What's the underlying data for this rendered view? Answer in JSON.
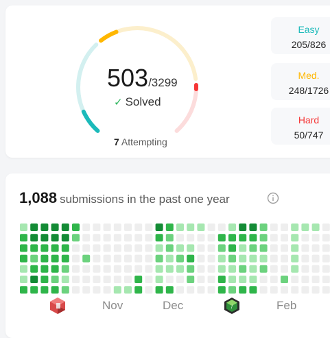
{
  "progress": {
    "solved": "503",
    "total": "/3299",
    "solved_label": "Solved",
    "attempting_count": "7",
    "attempting_label": "Attempting",
    "solved_fraction": 0.152
  },
  "difficulty": [
    {
      "name": "Easy",
      "value": "205/826",
      "color": "#1cbaba",
      "fraction": 0.248
    },
    {
      "name": "Med.",
      "value": "248/1726",
      "color": "#ffb700",
      "fraction": 0.144
    },
    {
      "name": "Hard",
      "value": "50/747",
      "color": "#f63737",
      "fraction": 0.067
    }
  ],
  "submissions": {
    "count": "1,088",
    "label": "submissions in the past one year",
    "info_icon": "info-icon",
    "months": [
      "Nov",
      "Dec",
      "Feb"
    ],
    "badges": [
      "red-hexagon-badge",
      "green-hexagon-badge"
    ],
    "activity_levels": [
      [
        1,
        3,
        3,
        3,
        1,
        1,
        3
      ],
      [
        4,
        4,
        3,
        2,
        3,
        4,
        3
      ],
      [
        4,
        4,
        3,
        3,
        3,
        3,
        3
      ],
      [
        4,
        4,
        3,
        3,
        3,
        2,
        3
      ],
      [
        4,
        4,
        3,
        3,
        2,
        1,
        2
      ],
      [
        3,
        2,
        0,
        0,
        0,
        0,
        0
      ],
      [
        0,
        0,
        0,
        2,
        0,
        0,
        0
      ],
      [
        0,
        0,
        0,
        0,
        0,
        0,
        0
      ],
      [
        0,
        0,
        0,
        0,
        0,
        0,
        0
      ],
      [
        0,
        0,
        0,
        0,
        0,
        0,
        1
      ],
      [
        0,
        0,
        0,
        0,
        0,
        0,
        1
      ],
      [
        0,
        0,
        0,
        0,
        0,
        3,
        3
      ],
      [
        0,
        0,
        0,
        0,
        0,
        0,
        0
      ],
      [
        4,
        3,
        1,
        2,
        1,
        1,
        3
      ],
      [
        3,
        2,
        2,
        1,
        1,
        0,
        3
      ],
      [
        1,
        0,
        1,
        2,
        1,
        0,
        0
      ],
      [
        1,
        0,
        1,
        3,
        2,
        2,
        0
      ],
      [
        1,
        0,
        0,
        0,
        0,
        0,
        0
      ],
      [
        0,
        0,
        0,
        0,
        0,
        0,
        0
      ],
      [
        0,
        3,
        2,
        1,
        1,
        3,
        3
      ],
      [
        1,
        3,
        3,
        2,
        1,
        1,
        2
      ],
      [
        4,
        3,
        1,
        1,
        2,
        1,
        3
      ],
      [
        4,
        3,
        2,
        1,
        1,
        1,
        3
      ],
      [
        2,
        2,
        2,
        1,
        2,
        0,
        0
      ],
      [
        0,
        0,
        0,
        0,
        0,
        0,
        0
      ],
      [
        0,
        0,
        0,
        0,
        0,
        2,
        0
      ],
      [
        1,
        1,
        1,
        1,
        1,
        0,
        0
      ],
      [
        1,
        0,
        0,
        0,
        0,
        0,
        0
      ],
      [
        1,
        0,
        0,
        0,
        0,
        0,
        0
      ],
      [
        0,
        0,
        0,
        0,
        0,
        0,
        0
      ],
      [
        0,
        0,
        0,
        0,
        0,
        0,
        0
      ]
    ]
  },
  "colors": {
    "level0": "#eeeeee",
    "level1": "#a6e7b0",
    "level2": "#6cd27e",
    "level3": "#2fb54a",
    "level4": "#138b35",
    "track_easy": "#d3f0f0",
    "track_med": "#fcefcc",
    "track_hard": "#fcdcdc"
  }
}
